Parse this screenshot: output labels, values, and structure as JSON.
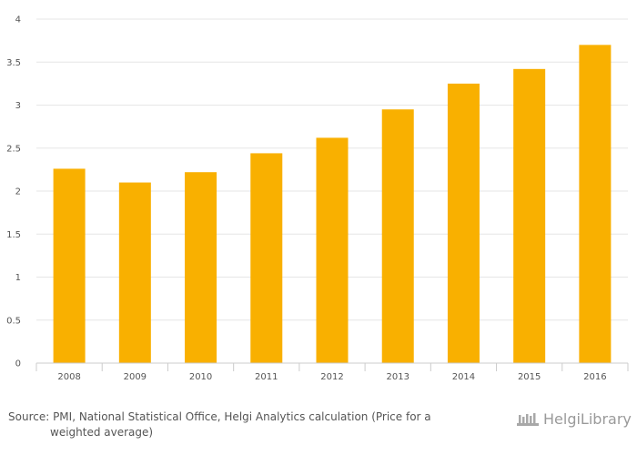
{
  "chart_data": {
    "type": "bar",
    "categories": [
      "2008",
      "2009",
      "2010",
      "2011",
      "2012",
      "2013",
      "2014",
      "2015",
      "2016"
    ],
    "values": [
      2.26,
      2.1,
      2.22,
      2.44,
      2.62,
      2.95,
      3.25,
      3.42,
      3.7
    ],
    "yticks": [
      "0",
      "0.5",
      "1",
      "1.5",
      "2",
      "2.5",
      "3",
      "3.5",
      "4"
    ],
    "ylim": [
      0,
      4
    ],
    "grid": true,
    "colors": {
      "bar": "#f9b000",
      "grid": "#e6e6e6",
      "axis": "#cccccc"
    }
  },
  "footer": {
    "source_line1": "Source: PMI, National Statistical Office, Helgi Analytics calculation (Price for a",
    "source_line2": "weighted average)",
    "brand_name": "HelgiLibrary",
    "brand_icon": "library-icon"
  }
}
